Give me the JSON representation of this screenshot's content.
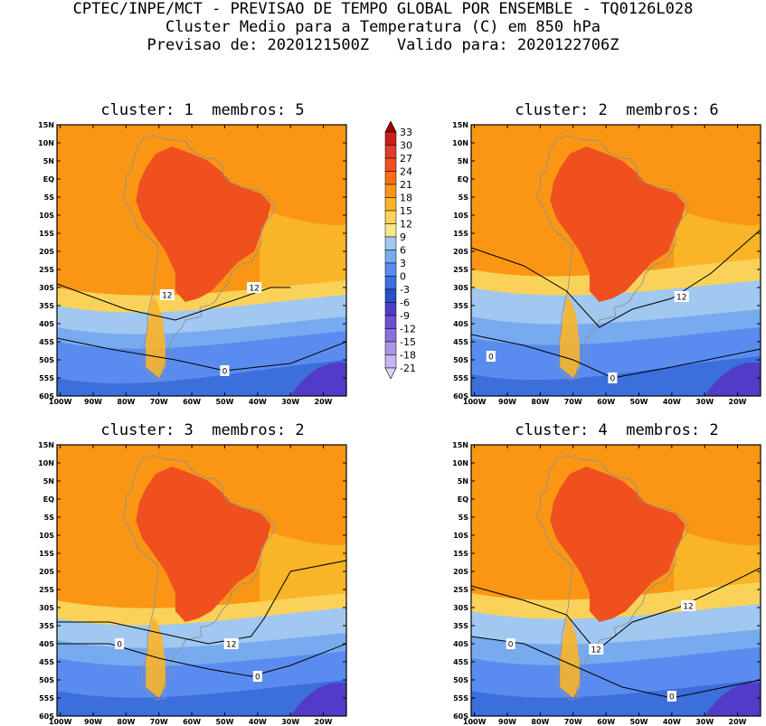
{
  "header": {
    "line1": "CPTEC/INPE/MCT - PREVISAO DE TEMPO GLOBAL POR ENSEMBLE - TQ0126L028",
    "line2": "Cluster Medio para a Temperatura (C) em 850 hPa",
    "line3": "Previsao de: 2020121500Z   Valido para: 2020122706Z"
  },
  "panels": [
    {
      "title": "cluster: 1  membros: 5",
      "contour_labels": [
        {
          "text": "12",
          "lon": -67.5,
          "lat": -32
        },
        {
          "text": "12",
          "lon": -41,
          "lat": -30
        },
        {
          "text": "0",
          "lon": -50,
          "lat": -53
        }
      ]
    },
    {
      "title": "cluster: 2  membros: 6",
      "contour_labels": [
        {
          "text": "12",
          "lon": -37,
          "lat": -32.5
        },
        {
          "text": "0",
          "lon": -95,
          "lat": -49
        },
        {
          "text": "0",
          "lon": -58,
          "lat": -55
        }
      ]
    },
    {
      "title": "cluster: 3  membros: 2",
      "contour_labels": [
        {
          "text": "12",
          "lon": -48,
          "lat": -40
        },
        {
          "text": "0",
          "lon": -82,
          "lat": -40
        },
        {
          "text": "0",
          "lon": -40,
          "lat": -49
        }
      ]
    },
    {
      "title": "cluster: 4  membros: 2",
      "contour_labels": [
        {
          "text": "12",
          "lon": -35,
          "lat": -29.5
        },
        {
          "text": "12",
          "lon": -63,
          "lat": -41.5
        },
        {
          "text": "0",
          "lon": -89,
          "lat": -40
        },
        {
          "text": "0",
          "lon": -40,
          "lat": -54.5
        }
      ]
    }
  ],
  "axes": {
    "lat_ticks": [
      "15N",
      "10N",
      "5N",
      "EQ",
      "5S",
      "10S",
      "15S",
      "20S",
      "25S",
      "30S",
      "35S",
      "40S",
      "45S",
      "50S",
      "55S",
      "60S"
    ],
    "lon_ticks": [
      "100W",
      "90W",
      "80W",
      "70W",
      "60W",
      "50W",
      "40W",
      "30W",
      "20W"
    ],
    "lon_range": [
      -101,
      -13
    ],
    "lat_range": [
      -60,
      15
    ]
  },
  "colorbar": {
    "labels": [
      "33",
      "30",
      "27",
      "24",
      "21",
      "18",
      "15",
      "12",
      "9",
      "6",
      "3",
      "0",
      "-3",
      "-6",
      "-9",
      "-12",
      "-15",
      "-18",
      "-21"
    ],
    "colors": [
      "#a00000",
      "#c81e1e",
      "#e03c28",
      "#f0501e",
      "#fa6e14",
      "#fa9614",
      "#fab428",
      "#fad25a",
      "#fae68c",
      "#a0c8f0",
      "#78aaf0",
      "#5a8cf0",
      "#3c6edc",
      "#2850c8",
      "#503cc8",
      "#6e50d2",
      "#8c6edc",
      "#aa96e6",
      "#c8b4f0",
      "#dcd2f8"
    ]
  }
}
